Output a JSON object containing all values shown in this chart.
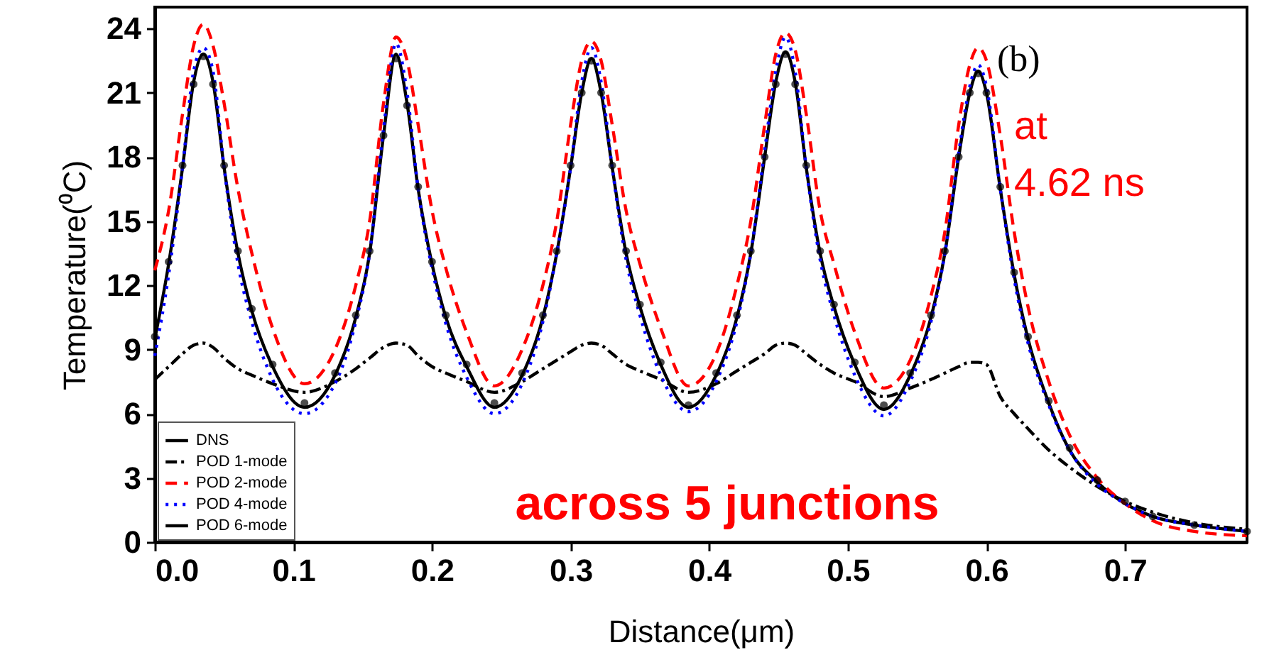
{
  "chart_data": {
    "type": "line",
    "xlabel": "Distance(μm)",
    "ylabel": "Temperature(⁰C)",
    "annotations": [
      "(b)",
      "at 4.62 ns",
      "across 5 junctions"
    ],
    "x": [
      0,
      0.01,
      0.02,
      0.028,
      0.035,
      0.042,
      0.05,
      0.06,
      0.07,
      0.085,
      0.108,
      0.13,
      0.145,
      0.155,
      0.165,
      0.174,
      0.182,
      0.19,
      0.2,
      0.21,
      0.225,
      0.245,
      0.265,
      0.28,
      0.29,
      0.3,
      0.308,
      0.315,
      0.322,
      0.33,
      0.34,
      0.35,
      0.365,
      0.385,
      0.405,
      0.42,
      0.43,
      0.44,
      0.448,
      0.455,
      0.462,
      0.47,
      0.48,
      0.49,
      0.505,
      0.526,
      0.545,
      0.56,
      0.57,
      0.58,
      0.588,
      0.594,
      0.6,
      0.61,
      0.62,
      0.63,
      0.645,
      0.66,
      0.68,
      0.7,
      0.72,
      0.75,
      0.788
    ],
    "series": [
      {
        "name": "DNS",
        "color": "#000000",
        "line_style": "solid",
        "values": [
          9.5,
          13,
          17.5,
          21.5,
          22.8,
          21.5,
          17.5,
          13.5,
          10.8,
          8.2,
          6.3,
          7.8,
          10.5,
          13.5,
          19,
          22.8,
          20.5,
          16.5,
          13,
          10.5,
          8.2,
          6.3,
          7.8,
          10.5,
          13.5,
          17.5,
          21,
          22.6,
          21,
          17.5,
          13.5,
          11,
          8.3,
          6.3,
          7.8,
          10.5,
          13.5,
          18,
          21.5,
          22.9,
          21.5,
          17.5,
          13.5,
          11,
          8.3,
          6.2,
          7.8,
          10.5,
          13.5,
          18,
          21,
          22,
          21,
          16.5,
          12.5,
          9.5,
          6.5,
          4.3,
          2.8,
          1.8,
          1.2,
          0.8,
          0.5
        ]
      },
      {
        "name": "POD 1-mode",
        "color": "#000000",
        "line_style": "dashdot",
        "values": [
          7.6,
          8.2,
          8.8,
          9.2,
          9.3,
          9.1,
          8.6,
          8.1,
          7.8,
          7.4,
          7.0,
          7.5,
          8.1,
          8.6,
          9.1,
          9.3,
          9.2,
          8.7,
          8.2,
          7.9,
          7.5,
          7.0,
          7.5,
          8.1,
          8.5,
          8.9,
          9.2,
          9.3,
          9.2,
          8.8,
          8.3,
          8.0,
          7.6,
          7.0,
          7.4,
          8.0,
          8.4,
          8.8,
          9.2,
          9.3,
          9.2,
          8.8,
          8.3,
          7.9,
          7.5,
          6.8,
          7.2,
          7.6,
          7.9,
          8.2,
          8.4,
          8.4,
          8.3,
          6.8,
          6.0,
          5.3,
          4.3,
          3.5,
          2.6,
          1.9,
          1.4,
          0.9,
          0.6
        ]
      },
      {
        "name": "POD 2-mode",
        "color": "#ff0000",
        "line_style": "dashed",
        "values": [
          12.7,
          15.5,
          20,
          23.2,
          24.2,
          23.2,
          20.5,
          16.5,
          13.5,
          10,
          7.4,
          9,
          12,
          15,
          20.5,
          23.6,
          22.5,
          19.5,
          15.5,
          12.8,
          9.8,
          7.3,
          9,
          12,
          15,
          19.5,
          22.5,
          23.4,
          22.5,
          19.5,
          15.5,
          13,
          10,
          7.3,
          8.8,
          12,
          15,
          19.5,
          22.8,
          23.8,
          23,
          20,
          15.5,
          13,
          9.8,
          7.2,
          8.5,
          11.5,
          14.5,
          19.5,
          22.3,
          23.1,
          22.5,
          19,
          14.5,
          11,
          7.5,
          5,
          3,
          1.8,
          1,
          0.5,
          0.3
        ]
      },
      {
        "name": "POD 4-mode",
        "color": "#0000ff",
        "line_style": "dotted",
        "values": [
          8.7,
          12.5,
          17.5,
          22,
          23.1,
          22,
          17.5,
          13,
          10.3,
          7.6,
          6.0,
          7.4,
          10.3,
          13.5,
          19.3,
          23.3,
          21,
          16.5,
          12.8,
          10.2,
          7.7,
          6.0,
          7.4,
          10.3,
          13.5,
          17.5,
          21.5,
          23.1,
          21.5,
          17.5,
          13.2,
          10.6,
          7.8,
          6.1,
          7.5,
          10.3,
          13.5,
          18.3,
          22,
          23.6,
          22,
          17.5,
          13.2,
          10.6,
          7.8,
          5.9,
          7.5,
          10.3,
          13.5,
          18.2,
          21.3,
          22.3,
          21.3,
          16.5,
          12.3,
          9.3,
          6.4,
          4.3,
          2.7,
          1.8,
          1.2,
          0.8,
          0.5
        ]
      },
      {
        "name": "POD 6-mode",
        "color": "#000000",
        "type": "scatter",
        "marker": "circle",
        "values": [
          9.6,
          13.1,
          17.6,
          21.4,
          22.7,
          21.4,
          17.6,
          13.6,
          10.9,
          8.3,
          6.5,
          7.9,
          10.6,
          13.6,
          19,
          22.6,
          20.4,
          16.6,
          13.1,
          10.6,
          8.3,
          6.5,
          7.9,
          10.6,
          13.6,
          17.6,
          21,
          22.5,
          21,
          17.6,
          13.6,
          11.1,
          8.4,
          6.4,
          7.9,
          10.6,
          13.6,
          18,
          21.4,
          22.8,
          21.4,
          17.6,
          13.6,
          11.1,
          8.4,
          6.4,
          7.9,
          10.6,
          13.6,
          18,
          21,
          21.9,
          21,
          16.6,
          12.6,
          9.6,
          6.6,
          4.4,
          2.9,
          1.9,
          1.2,
          0.8,
          0.5
        ]
      }
    ],
    "xlim": [
      0,
      0.788
    ],
    "xticks": [
      {
        "value": 0,
        "label": "0.0"
      },
      0.1,
      0.2,
      0.3,
      0.4,
      0.5,
      0.6,
      0.7
    ],
    "ylim": [
      0,
      25
    ],
    "yticks": [
      0,
      3,
      6,
      9,
      12,
      15,
      18,
      21,
      24
    ],
    "grid": false,
    "legend": "bottom left"
  }
}
